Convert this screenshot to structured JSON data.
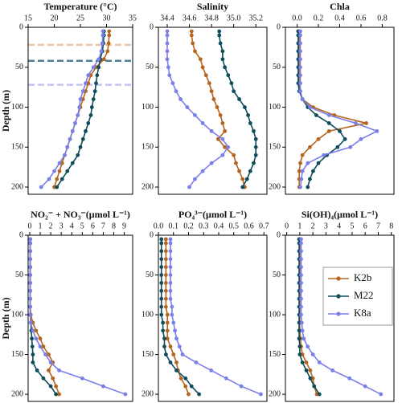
{
  "chart_data": [
    {
      "type": "line",
      "title": "Temperature (°C)",
      "ylabel": "Depth (m)",
      "xlim": [
        15,
        35
      ],
      "xticks": [
        15,
        20,
        25,
        30,
        35
      ],
      "ylim": [
        0,
        209
      ],
      "yticks": [
        0,
        50,
        100,
        150,
        200
      ],
      "y": [
        5,
        10,
        20,
        30,
        40,
        50,
        60,
        70,
        80,
        90,
        100,
        110,
        120,
        130,
        140,
        150,
        160,
        170,
        180,
        190,
        200
      ],
      "series": [
        {
          "values": [
            30.5,
            30.5,
            30.4,
            30.2,
            29.5,
            28,
            27,
            26.5,
            26,
            25.5,
            25,
            24.5,
            24,
            23.5,
            23,
            22.5,
            22,
            21.5,
            21,
            20.5,
            20
          ]
        },
        {
          "values": [
            29.5,
            29.5,
            29.4,
            29.2,
            28.8,
            28.5,
            28.2,
            28,
            27.8,
            27.5,
            27.2,
            27,
            26.5,
            26,
            25.5,
            25,
            24.5,
            23.5,
            22.5,
            21.5,
            20.5
          ]
        },
        {
          "values": [
            29.3,
            29.3,
            29.2,
            29,
            28.5,
            27.5,
            26.5,
            26,
            25.5,
            25,
            24.8,
            24.5,
            24,
            23.5,
            23,
            22.5,
            22,
            21,
            20,
            19,
            17.5
          ]
        }
      ],
      "reference_lines": [
        {
          "value": 22,
          "color": "#ecc4a2"
        },
        {
          "value": 42,
          "color": "#4f7d93"
        },
        {
          "value": 72,
          "color": "#c3c3f2"
        }
      ]
    },
    {
      "type": "line",
      "title": "Salinity",
      "xlim": [
        34.32,
        35.3
      ],
      "xticks": [
        34.4,
        34.6,
        34.8,
        {
          "value": 35,
          "label": "35.0"
        },
        35.2
      ],
      "ylim": [
        0,
        209
      ],
      "yticks": [
        0,
        50,
        100,
        150,
        200
      ],
      "y": [
        5,
        10,
        20,
        30,
        40,
        50,
        60,
        70,
        80,
        90,
        100,
        110,
        120,
        130,
        140,
        150,
        160,
        170,
        180,
        190,
        200
      ],
      "series": [
        {
          "values": [
            34.62,
            34.62,
            34.63,
            34.65,
            34.7,
            34.72,
            34.75,
            34.78,
            34.8,
            34.82,
            34.85,
            34.88,
            34.9,
            34.92,
            34.86,
            34.92,
            35.0,
            35.02,
            35.05,
            35.08,
            35.1
          ]
        },
        {
          "values": [
            34.87,
            34.87,
            34.88,
            34.9,
            34.9,
            34.92,
            34.95,
            34.98,
            35.0,
            35.05,
            35.1,
            35.13,
            35.15,
            35.18,
            35.2,
            35.2,
            35.2,
            35.18,
            35.15,
            35.12,
            35.08
          ]
        },
        {
          "values": [
            34.4,
            34.4,
            34.4,
            34.4,
            34.4,
            34.41,
            34.42,
            34.45,
            34.48,
            34.52,
            34.58,
            34.65,
            34.72,
            34.8,
            34.9,
            34.95,
            34.9,
            34.8,
            34.72,
            34.65,
            34.6
          ]
        }
      ]
    },
    {
      "type": "line",
      "title": "Chla",
      "xlim": [
        -0.11,
        0.91
      ],
      "xticks": [
        {
          "value": 0,
          "label": "0.0"
        },
        0.2,
        0.4,
        0.6,
        0.8
      ],
      "ylim": [
        0,
        209
      ],
      "yticks": [
        0,
        50,
        100,
        150,
        200
      ],
      "y": [
        5,
        10,
        20,
        30,
        40,
        50,
        60,
        70,
        80,
        90,
        100,
        110,
        120,
        130,
        140,
        150,
        160,
        170,
        180,
        190,
        200
      ],
      "series": [
        {
          "values": [
            0.02,
            0.02,
            0.02,
            0.02,
            0.02,
            0.02,
            0.02,
            0.02,
            0.03,
            0.05,
            0.15,
            0.35,
            0.65,
            0.3,
            0.2,
            0.12,
            0.05,
            0.03,
            0.02,
            0.02,
            0.02
          ]
        },
        {
          "values": [
            0.01,
            0.01,
            0.01,
            0.01,
            0.01,
            0.01,
            0.01,
            0.01,
            0.02,
            0.05,
            0.1,
            0.18,
            0.3,
            0.4,
            0.45,
            0.38,
            0.28,
            0.2,
            0.15,
            0.12,
            0.1
          ]
        },
        {
          "values": [
            0.03,
            0.03,
            0.03,
            0.03,
            0.03,
            0.03,
            0.03,
            0.03,
            0.03,
            0.05,
            0.12,
            0.3,
            0.55,
            0.75,
            0.6,
            0.5,
            0.25,
            0.1,
            0.05,
            0.04,
            0.03
          ]
        }
      ]
    },
    {
      "type": "line",
      "title": "NO₂⁻ + NO₃⁻(μmol L⁻¹)",
      "ylabel": "Depth (m)",
      "xlim": [
        -0.15,
        9.8
      ],
      "xticks": [
        0,
        1,
        2,
        3,
        4,
        5,
        6,
        7,
        8,
        9
      ],
      "ylim": [
        0,
        209
      ],
      "yticks": [
        0,
        50,
        100,
        150,
        200
      ],
      "y": [
        5,
        10,
        20,
        30,
        40,
        50,
        60,
        70,
        80,
        90,
        100,
        110,
        120,
        130,
        140,
        150,
        160,
        170,
        180,
        190,
        200
      ],
      "series": [
        {
          "values": [
            0.05,
            0.05,
            0.05,
            0.05,
            0.05,
            0.05,
            0.05,
            0.05,
            0.05,
            0.05,
            0.1,
            0.3,
            0.6,
            1,
            1.3,
            1.8,
            2.2,
            1.8,
            2.2,
            2.5,
            2.8
          ]
        },
        {
          "values": [
            0.05,
            0.05,
            0.05,
            0.05,
            0.05,
            0.05,
            0.05,
            0.05,
            0.05,
            0.05,
            0.05,
            0.1,
            0.15,
            0.2,
            0.25,
            0.3,
            0.3,
            0.7,
            1.3,
            2,
            2.5
          ]
        },
        {
          "values": [
            0.05,
            0.05,
            0.05,
            0.05,
            0.05,
            0.05,
            0.05,
            0.05,
            0.05,
            0.05,
            0.05,
            0.1,
            0.3,
            0.6,
            1,
            1.5,
            2,
            2.8,
            5,
            7,
            9.1
          ]
        }
      ]
    },
    {
      "type": "line",
      "title": "PO₄³⁻(μmol L⁻¹)",
      "xlim": [
        0,
        0.72
      ],
      "xticks": [
        {
          "value": 0,
          "label": "0.0"
        },
        0.1,
        0.2,
        0.3,
        0.4,
        0.5,
        0.6,
        0.7
      ],
      "ylim": [
        0,
        209
      ],
      "yticks": [
        0,
        50,
        100,
        150,
        200
      ],
      "y": [
        5,
        10,
        20,
        30,
        40,
        50,
        60,
        70,
        80,
        90,
        100,
        110,
        120,
        130,
        140,
        150,
        160,
        170,
        180,
        190,
        200
      ],
      "series": [
        {
          "values": [
            0.05,
            0.05,
            0.05,
            0.05,
            0.05,
            0.05,
            0.05,
            0.05,
            0.05,
            0.05,
            0.06,
            0.06,
            0.06,
            0.06,
            0.08,
            0.1,
            0.12,
            0.13,
            0.15,
            0.18,
            0.2
          ]
        },
        {
          "values": [
            0.02,
            0.02,
            0.02,
            0.02,
            0.02,
            0.02,
            0.02,
            0.02,
            0.02,
            0.02,
            0.02,
            0.03,
            0.03,
            0.04,
            0.04,
            0.05,
            0.08,
            0.12,
            0.18,
            0.22,
            0.27
          ]
        },
        {
          "values": [
            0.08,
            0.08,
            0.08,
            0.08,
            0.08,
            0.08,
            0.08,
            0.08,
            0.08,
            0.09,
            0.09,
            0.1,
            0.11,
            0.12,
            0.14,
            0.16,
            0.25,
            0.35,
            0.45,
            0.55,
            0.68
          ]
        }
      ]
    },
    {
      "type": "line",
      "title": "Si(OH)₄(μmol L⁻¹)",
      "xlim": [
        -0.1,
        8.2
      ],
      "xticks": [
        0,
        1,
        2,
        3,
        4,
        5,
        6,
        7,
        8
      ],
      "ylim": [
        0,
        209
      ],
      "yticks": [
        0,
        50,
        100,
        150,
        200
      ],
      "y": [
        5,
        10,
        20,
        30,
        40,
        50,
        60,
        70,
        80,
        90,
        100,
        110,
        120,
        130,
        140,
        150,
        160,
        170,
        180,
        190,
        200
      ],
      "series": [
        {
          "values": [
            1,
            1,
            1,
            1,
            1,
            1,
            1,
            1,
            1,
            1,
            1,
            1,
            1,
            1.05,
            1.1,
            1.2,
            1.5,
            1.8,
            2,
            2.1,
            2.3
          ]
        },
        {
          "values": [
            0.95,
            0.95,
            0.95,
            0.95,
            0.95,
            0.95,
            0.95,
            0.95,
            0.95,
            0.95,
            0.95,
            0.95,
            0.95,
            0.95,
            1,
            1,
            1.2,
            1.5,
            1.8,
            2.1,
            2.5
          ]
        },
        {
          "values": [
            1.1,
            1.1,
            1.1,
            1.1,
            1.1,
            1.1,
            1.1,
            1.1,
            1.1,
            1.1,
            1.1,
            1.15,
            1.2,
            1.3,
            1.6,
            2,
            2.5,
            3.5,
            4.8,
            6,
            7.2
          ]
        }
      ],
      "legend": "upper right"
    }
  ],
  "legend": {
    "entries": [
      {
        "name": "K2b",
        "color": "#b5651d"
      },
      {
        "name": "M22",
        "color": "#0f4c5c"
      },
      {
        "name": "K8a",
        "color": "#7b7fe8"
      }
    ]
  }
}
